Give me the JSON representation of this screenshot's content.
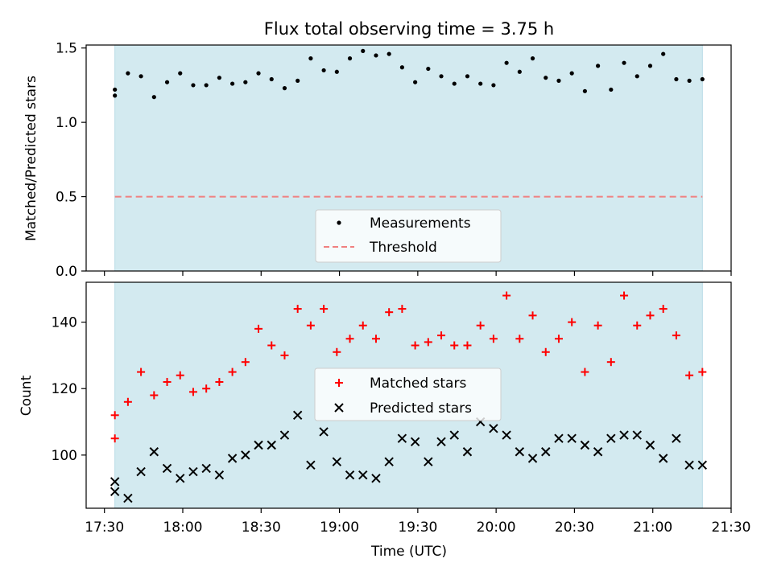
{
  "chart_data": [
    {
      "type": "scatter",
      "title": "Flux total observing time = 3.75 h",
      "xlabel": "",
      "ylabel": "Matched/Predicted stars",
      "xlim": [
        "17:23",
        "21:30"
      ],
      "ylim": [
        0,
        1.52
      ],
      "shaded_region": [
        "17:34",
        "21:19"
      ],
      "shade_color": "#d3eaf0",
      "x_ticks": [
        "17:30",
        "18:00",
        "18:30",
        "19:00",
        "19:30",
        "20:00",
        "20:30",
        "21:00",
        "21:30"
      ],
      "y_ticks": [
        "0.0",
        "0.5",
        "1.0",
        "1.5"
      ],
      "threshold": {
        "value": 0.5,
        "name": "Threshold",
        "color": "#f08080"
      },
      "series": [
        {
          "name": "Measurements",
          "color": "#000000",
          "marker": "dot",
          "x": [
            "17:34",
            "17:34",
            "17:39",
            "17:44",
            "17:49",
            "17:54",
            "17:59",
            "18:04",
            "18:09",
            "18:14",
            "18:19",
            "18:24",
            "18:29",
            "18:34",
            "18:39",
            "18:44",
            "18:49",
            "18:54",
            "18:59",
            "19:04",
            "19:09",
            "19:14",
            "19:19",
            "19:24",
            "19:29",
            "19:34",
            "19:39",
            "19:44",
            "19:49",
            "19:54",
            "19:59",
            "20:04",
            "20:09",
            "20:14",
            "20:19",
            "20:24",
            "20:29",
            "20:34",
            "20:39",
            "20:44",
            "20:49",
            "20:54",
            "20:59",
            "21:04",
            "21:09",
            "21:14",
            "21:19"
          ],
          "y": [
            1.22,
            1.18,
            1.33,
            1.31,
            1.17,
            1.27,
            1.33,
            1.25,
            1.25,
            1.3,
            1.26,
            1.27,
            1.33,
            1.29,
            1.23,
            1.28,
            1.43,
            1.35,
            1.34,
            1.43,
            1.48,
            1.45,
            1.46,
            1.37,
            1.27,
            1.36,
            1.31,
            1.26,
            1.31,
            1.26,
            1.25,
            1.4,
            1.34,
            1.43,
            1.3,
            1.28,
            1.33,
            1.21,
            1.38,
            1.22,
            1.4,
            1.31,
            1.38,
            1.46,
            1.29,
            1.28,
            1.29
          ]
        }
      ],
      "legend": {
        "position": "lower center",
        "entries": [
          "Measurements",
          "Threshold"
        ]
      }
    },
    {
      "type": "scatter",
      "title": "",
      "xlabel": "Time (UTC)",
      "ylabel": "Count",
      "xlim": [
        "17:23",
        "21:30"
      ],
      "ylim": [
        84,
        152
      ],
      "shaded_region": [
        "17:34",
        "21:19"
      ],
      "shade_color": "#d3eaf0",
      "x_ticks": [
        "17:30",
        "18:00",
        "18:30",
        "19:00",
        "19:30",
        "20:00",
        "20:30",
        "21:00",
        "21:30"
      ],
      "y_ticks": [
        "100",
        "120",
        "140"
      ],
      "series": [
        {
          "name": "Matched stars",
          "color": "#ff0000",
          "marker": "plus",
          "x": [
            "17:34",
            "17:34",
            "17:39",
            "17:44",
            "17:49",
            "17:54",
            "17:59",
            "18:04",
            "18:09",
            "18:14",
            "18:19",
            "18:24",
            "18:29",
            "18:34",
            "18:39",
            "18:44",
            "18:49",
            "18:54",
            "18:59",
            "19:04",
            "19:09",
            "19:14",
            "19:19",
            "19:24",
            "19:29",
            "19:34",
            "19:39",
            "19:44",
            "19:49",
            "19:54",
            "19:59",
            "20:04",
            "20:09",
            "20:14",
            "20:19",
            "20:24",
            "20:29",
            "20:34",
            "20:39",
            "20:44",
            "20:49",
            "20:54",
            "20:59",
            "21:04",
            "21:09",
            "21:14",
            "21:19"
          ],
          "y": [
            112,
            105,
            116,
            125,
            118,
            122,
            124,
            119,
            120,
            122,
            125,
            128,
            138,
            133,
            130,
            144,
            139,
            144,
            131,
            135,
            139,
            135,
            143,
            144,
            133,
            134,
            136,
            133,
            133,
            139,
            135,
            148,
            135,
            142,
            131,
            135,
            140,
            125,
            139,
            128,
            148,
            139,
            142,
            144,
            136,
            124,
            125
          ]
        },
        {
          "name": "Predicted stars",
          "color": "#000000",
          "marker": "x",
          "x": [
            "17:34",
            "17:34",
            "17:39",
            "17:44",
            "17:49",
            "17:54",
            "17:59",
            "18:04",
            "18:09",
            "18:14",
            "18:19",
            "18:24",
            "18:29",
            "18:34",
            "18:39",
            "18:44",
            "18:49",
            "18:54",
            "18:59",
            "19:04",
            "19:09",
            "19:14",
            "19:19",
            "19:24",
            "19:29",
            "19:34",
            "19:39",
            "19:44",
            "19:49",
            "19:54",
            "19:59",
            "20:04",
            "20:09",
            "20:14",
            "20:19",
            "20:24",
            "20:29",
            "20:34",
            "20:39",
            "20:44",
            "20:49",
            "20:54",
            "20:59",
            "21:04",
            "21:09",
            "21:14",
            "21:19"
          ],
          "y": [
            92,
            89,
            87,
            95,
            101,
            96,
            93,
            95,
            96,
            94,
            99,
            100,
            103,
            103,
            106,
            112,
            97,
            107,
            98,
            94,
            94,
            93,
            98,
            105,
            104,
            98,
            104,
            106,
            101,
            110,
            108,
            106,
            101,
            99,
            101,
            105,
            105,
            103,
            101,
            105,
            106,
            106,
            103,
            99,
            105,
            97,
            97
          ]
        }
      ],
      "legend": {
        "position": "center",
        "entries": [
          "Matched stars",
          "Predicted stars"
        ]
      }
    }
  ]
}
